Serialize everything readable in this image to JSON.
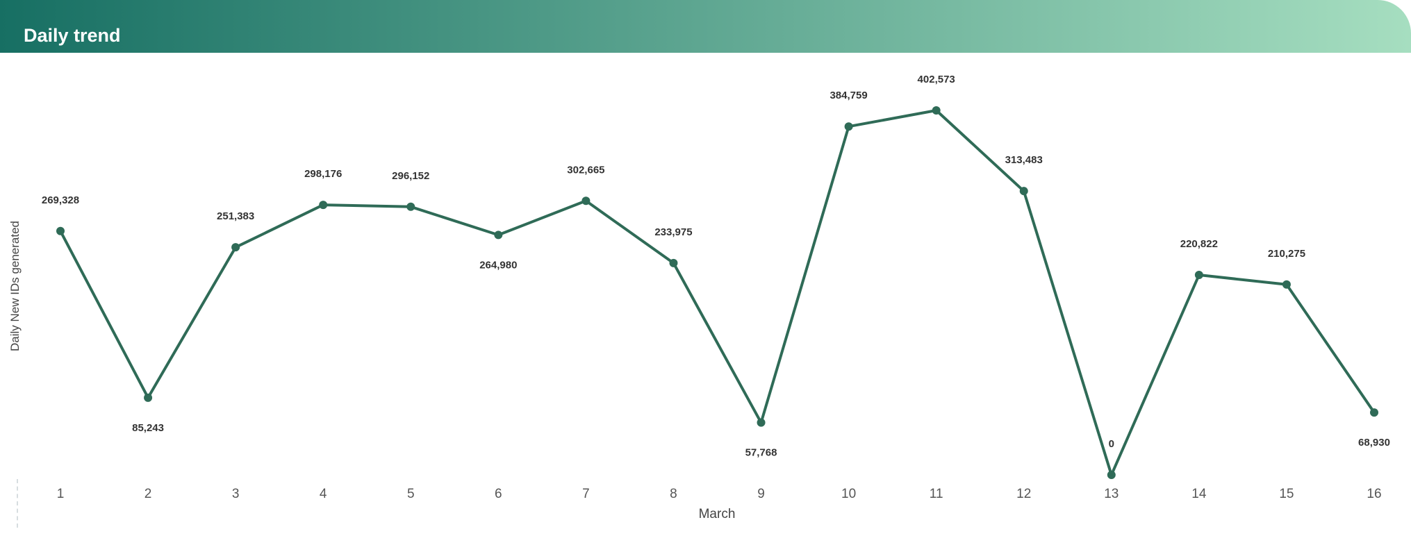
{
  "header": {
    "title": "Daily trend"
  },
  "colors": {
    "line": "#2f6b57",
    "header_start": "#176f63",
    "header_end": "#a6dec0"
  },
  "chart_data": {
    "type": "line",
    "title": "Daily trend",
    "xlabel": "March",
    "ylabel": "Daily New IDs generated",
    "categories": [
      "1",
      "2",
      "3",
      "4",
      "5",
      "6",
      "7",
      "8",
      "9",
      "10",
      "11",
      "12",
      "13",
      "14",
      "15",
      "16"
    ],
    "series": [
      {
        "values": [
          269328,
          85243,
          251383,
          298176,
          296152,
          264980,
          302665,
          233975,
          57768,
          384759,
          402573,
          313483,
          0,
          220822,
          210275,
          68930
        ]
      }
    ],
    "data_labels": [
      "269,328",
      "85,243",
      "251,383",
      "298,176",
      "296,152",
      "264,980",
      "302,665",
      "233,975",
      "57,768",
      "384,759",
      "402,573",
      "313,483",
      "0",
      "220,822",
      "210,275",
      "68,930"
    ],
    "label_positions": [
      "above",
      "below",
      "above",
      "above",
      "above",
      "below",
      "above",
      "above",
      "below",
      "above",
      "above",
      "above",
      "above",
      "above",
      "above",
      "below"
    ],
    "ylim": [
      0,
      402573
    ],
    "grid": false,
    "legend": "none"
  }
}
